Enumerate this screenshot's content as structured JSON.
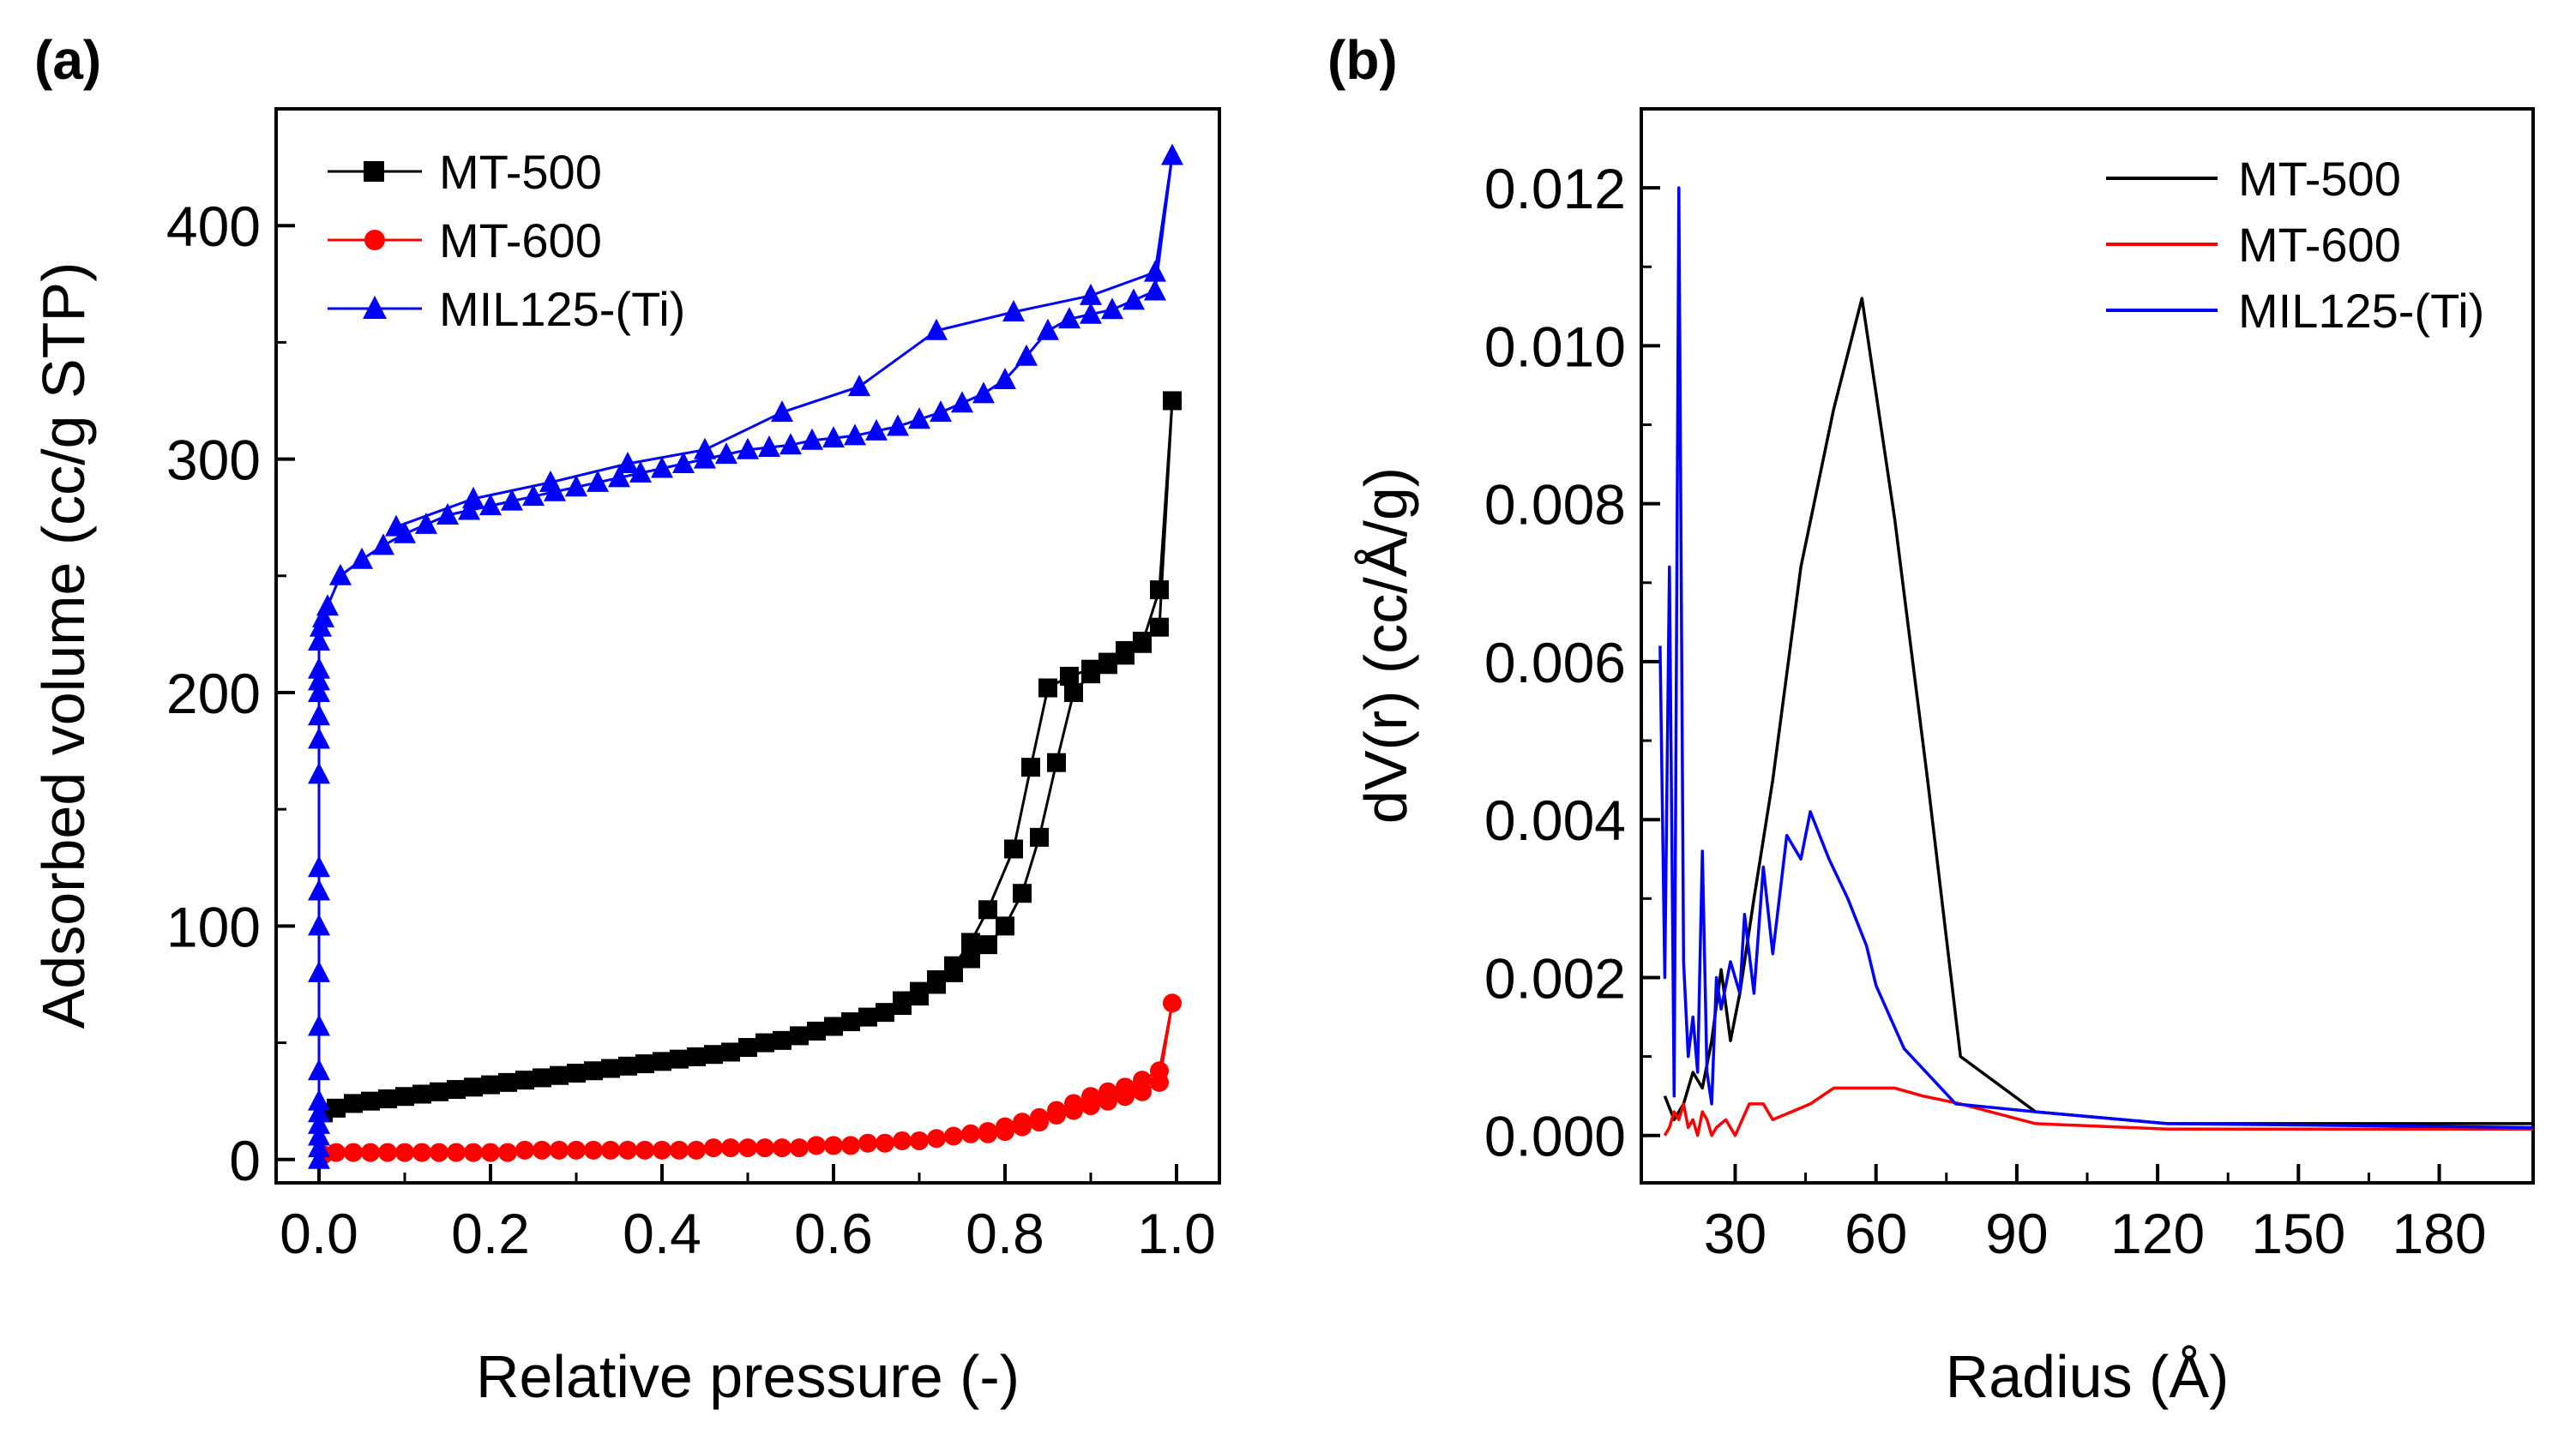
{
  "colors": {
    "MT-500": "#000000",
    "MT-600": "#ff0000",
    "MIL125-(Ti)": "#0000ff"
  },
  "chart_data": [
    {
      "panel": "(a)",
      "type": "line",
      "xlabel": "Relative pressure (-)",
      "ylabel": "Adsorbed volume (cc/g STP)",
      "xlim": [
        -0.05,
        1.05
      ],
      "ylim": [
        -10,
        450
      ],
      "xticks": [
        0.0,
        0.2,
        0.4,
        0.6,
        0.8,
        1.0
      ],
      "xtick_labels": [
        "0.0",
        "0.2",
        "0.4",
        "0.6",
        "0.8",
        "1.0"
      ],
      "yticks": [
        0,
        100,
        200,
        300,
        400
      ],
      "ytick_labels": [
        "0",
        "100",
        "200",
        "300",
        "400"
      ],
      "legend_position": "top-left",
      "series": [
        {
          "name": "MT-500",
          "color": "#000000",
          "marker": "square",
          "x": [
            0.005,
            0.02,
            0.04,
            0.06,
            0.08,
            0.1,
            0.12,
            0.14,
            0.16,
            0.18,
            0.2,
            0.22,
            0.24,
            0.26,
            0.28,
            0.3,
            0.32,
            0.34,
            0.36,
            0.38,
            0.4,
            0.42,
            0.44,
            0.46,
            0.48,
            0.5,
            0.52,
            0.54,
            0.56,
            0.58,
            0.6,
            0.62,
            0.64,
            0.66,
            0.68,
            0.7,
            0.72,
            0.74,
            0.76,
            0.78,
            0.8,
            0.82,
            0.84,
            0.86,
            0.88,
            0.9,
            0.92,
            0.94,
            0.96,
            0.98,
            0.995,
            0.98,
            0.96,
            0.94,
            0.92,
            0.9,
            0.875,
            0.85,
            0.83,
            0.81,
            0.78,
            0.76,
            0.74,
            0.72,
            0.7,
            0.68
          ],
          "y": [
            20,
            22,
            24,
            25,
            26,
            27,
            28,
            29,
            30,
            31,
            32,
            33,
            34,
            35,
            36,
            37,
            38,
            39,
            40,
            41,
            42,
            43,
            44,
            45,
            46,
            48,
            50,
            51,
            53,
            55,
            57,
            59,
            61,
            63,
            66,
            70,
            75,
            80,
            86,
            92,
            100,
            114,
            138,
            170,
            200,
            208,
            212,
            218,
            222,
            228,
            325,
            244,
            221,
            216,
            213,
            210,
            207,
            202,
            168,
            133,
            107,
            93,
            83,
            77,
            72,
            68
          ]
        },
        {
          "name": "MT-600",
          "color": "#ff0000",
          "marker": "circle",
          "x": [
            0.005,
            0.02,
            0.04,
            0.06,
            0.08,
            0.1,
            0.12,
            0.14,
            0.16,
            0.18,
            0.2,
            0.22,
            0.24,
            0.26,
            0.28,
            0.3,
            0.32,
            0.34,
            0.36,
            0.38,
            0.4,
            0.42,
            0.44,
            0.46,
            0.48,
            0.5,
            0.52,
            0.54,
            0.56,
            0.58,
            0.6,
            0.62,
            0.64,
            0.66,
            0.68,
            0.7,
            0.72,
            0.74,
            0.76,
            0.78,
            0.8,
            0.82,
            0.84,
            0.86,
            0.88,
            0.9,
            0.92,
            0.94,
            0.96,
            0.98,
            0.995,
            0.98,
            0.96,
            0.94,
            0.92,
            0.9,
            0.88,
            0.86,
            0.84,
            0.82,
            0.8,
            0.78
          ],
          "y": [
            2,
            3,
            3,
            3,
            3,
            3,
            3,
            3,
            3,
            3,
            3,
            3,
            4,
            4,
            4,
            4,
            4,
            4,
            4,
            4,
            4,
            4,
            4,
            5,
            5,
            5,
            5,
            5,
            5,
            6,
            6,
            6,
            7,
            7,
            8,
            8,
            9,
            10,
            11,
            12,
            14,
            16,
            18,
            21,
            24,
            27,
            29,
            31,
            34,
            38,
            67,
            33,
            29,
            27,
            25,
            23,
            21,
            19,
            16,
            14,
            12,
            11
          ]
        },
        {
          "name": "MIL125-(Ti)",
          "color": "#0000ff",
          "marker": "triangle",
          "x": [
            0.0,
            0.0,
            0.0,
            0.0,
            0.0,
            0.0,
            0.0,
            0.0,
            0.0,
            0.0,
            0.0,
            0.0,
            0.0,
            0.0,
            0.0,
            0.0,
            0.0,
            0.0,
            0.0,
            0.002,
            0.005,
            0.01,
            0.025,
            0.05,
            0.075,
            0.1,
            0.125,
            0.15,
            0.175,
            0.2,
            0.225,
            0.25,
            0.275,
            0.3,
            0.325,
            0.35,
            0.375,
            0.4,
            0.425,
            0.45,
            0.475,
            0.5,
            0.525,
            0.55,
            0.575,
            0.6,
            0.625,
            0.65,
            0.675,
            0.7,
            0.725,
            0.75,
            0.775,
            0.8,
            0.825,
            0.85,
            0.875,
            0.9,
            0.925,
            0.95,
            0.975,
            0.995,
            0.975,
            0.9,
            0.81,
            0.72,
            0.63,
            0.54,
            0.45,
            0.36,
            0.27,
            0.18,
            0.09
          ],
          "y": [
            0,
            5,
            10,
            15,
            20,
            25,
            38,
            57,
            80,
            100,
            115,
            125,
            165,
            180,
            190,
            200,
            205,
            210,
            222,
            228,
            232,
            237,
            250,
            257,
            263,
            268,
            272,
            276,
            278,
            280,
            282,
            284,
            286,
            288,
            290,
            292,
            294,
            296,
            298,
            300,
            302,
            304,
            305,
            306,
            308,
            309,
            310,
            312,
            314,
            317,
            320,
            324,
            328,
            334,
            344,
            355,
            360,
            362,
            364,
            368,
            372,
            430,
            380,
            370,
            363,
            355,
            331,
            320,
            304,
            298,
            290,
            283,
            271
          ]
        }
      ]
    },
    {
      "panel": "(b)",
      "type": "line",
      "xlabel": "Radius (Å)",
      "ylabel": "dV(r) (cc/Å/g)",
      "xlim": [
        10,
        200
      ],
      "ylim": [
        -0.0006,
        0.013
      ],
      "xticks": [
        30,
        60,
        90,
        120,
        150,
        180
      ],
      "xtick_labels": [
        "30",
        "60",
        "90",
        "120",
        "150",
        "180"
      ],
      "yticks": [
        0.0,
        0.002,
        0.004,
        0.006,
        0.008,
        0.01,
        0.012
      ],
      "ytick_labels": [
        "0.000",
        "0.002",
        "0.004",
        "0.006",
        "0.008",
        "0.010",
        "0.012"
      ],
      "legend_position": "top-right",
      "series": [
        {
          "name": "MT-500",
          "color": "#000000",
          "x": [
            15,
            17,
            19,
            21,
            23,
            25,
            27,
            29,
            31,
            34,
            38,
            44,
            51,
            57,
            64,
            71,
            78,
            94,
            122,
            200
          ],
          "y": [
            0.0005,
            0.0002,
            0.0004,
            0.0008,
            0.0006,
            0.0012,
            0.0021,
            0.0012,
            0.0018,
            0.003,
            0.0045,
            0.0072,
            0.0092,
            0.0106,
            0.0078,
            0.0045,
            0.001,
            0.0003,
            0.00015,
            0.00015
          ]
        },
        {
          "name": "MT-600",
          "color": "#ff0000",
          "x": [
            15,
            16,
            17,
            18,
            19,
            20,
            21,
            22,
            23,
            24,
            25,
            26,
            28,
            30,
            33,
            36,
            38,
            42,
            46,
            51,
            56,
            60,
            64,
            70,
            78,
            94,
            122,
            200
          ],
          "y": [
            0.0,
            0.0001,
            0.0003,
            0.0002,
            0.0004,
            0.0001,
            0.0002,
            0.0,
            0.0003,
            0.0002,
            0.0,
            0.0001,
            0.0002,
            0.0,
            0.0004,
            0.0004,
            0.0002,
            0.0003,
            0.0004,
            0.0006,
            0.0006,
            0.0006,
            0.0006,
            0.0005,
            0.0004,
            0.00015,
            8e-05,
            8e-05
          ]
        },
        {
          "name": "MIL125-(Ti)",
          "color": "#0000ff",
          "x": [
            14,
            15,
            16,
            17,
            18,
            19,
            20,
            21,
            22,
            23,
            24,
            25,
            26,
            27,
            29,
            31,
            32,
            34,
            36,
            38,
            41,
            44,
            46,
            50,
            54,
            58,
            60,
            66,
            77,
            94,
            122,
            200
          ],
          "y": [
            0.0062,
            0.002,
            0.0072,
            0.0005,
            0.012,
            0.0022,
            0.001,
            0.0015,
            0.0008,
            0.0036,
            0.0008,
            0.0004,
            0.002,
            0.0016,
            0.0022,
            0.0018,
            0.0028,
            0.0018,
            0.0034,
            0.0023,
            0.0038,
            0.0035,
            0.0041,
            0.0035,
            0.003,
            0.0024,
            0.0019,
            0.0011,
            0.0004,
            0.0003,
            0.00015,
            0.0001
          ]
        }
      ]
    }
  ]
}
